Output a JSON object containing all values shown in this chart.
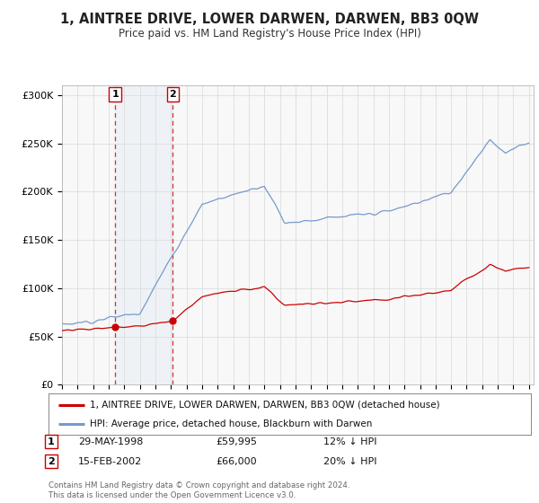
{
  "title": "1, AINTREE DRIVE, LOWER DARWEN, DARWEN, BB3 0QW",
  "subtitle": "Price paid vs. HM Land Registry's House Price Index (HPI)",
  "ylim": [
    0,
    310000
  ],
  "yticks": [
    0,
    50000,
    100000,
    150000,
    200000,
    250000,
    300000
  ],
  "ytick_labels": [
    "£0",
    "£50K",
    "£100K",
    "£150K",
    "£200K",
    "£250K",
    "£300K"
  ],
  "legend_red": "1, AINTREE DRIVE, LOWER DARWEN, DARWEN, BB3 0QW (detached house)",
  "legend_blue": "HPI: Average price, detached house, Blackburn with Darwen",
  "annotation_1_date": "29-MAY-1998",
  "annotation_1_price": "£59,995",
  "annotation_1_hpi": "12% ↓ HPI",
  "annotation_2_date": "15-FEB-2002",
  "annotation_2_price": "£66,000",
  "annotation_2_hpi": "20% ↓ HPI",
  "copyright_text": "Contains HM Land Registry data © Crown copyright and database right 2024.\nThis data is licensed under the Open Government Licence v3.0.",
  "background_color": "#ffffff",
  "plot_bg_color": "#f8f8f8",
  "grid_color": "#dddddd",
  "red_color": "#cc0000",
  "blue_color": "#7799cc",
  "sale_year_1": 1998.41,
  "sale_price_1": 59995,
  "sale_year_2": 2002.12,
  "sale_price_2": 66000
}
